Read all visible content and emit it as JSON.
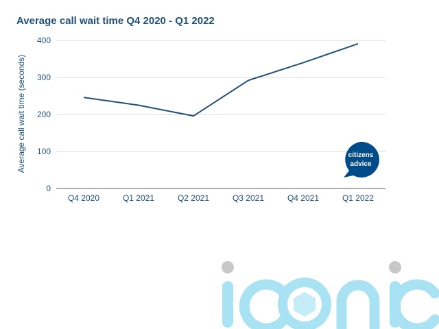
{
  "chart_data": {
    "type": "line",
    "title": "Average call wait time Q4 2020 - Q1 2022",
    "xlabel": "",
    "ylabel": "Average call wait time (seconds)",
    "categories": [
      "Q4 2020",
      "Q1 2021",
      "Q2 2021",
      "Q3 2021",
      "Q4 2021",
      "Q1 2022"
    ],
    "series": [
      {
        "values": [
          246,
          225,
          196,
          292,
          340,
          391
        ]
      }
    ],
    "ylim": [
      0,
      400
    ],
    "yticks": [
      0,
      100,
      200,
      300,
      400
    ],
    "grid": true,
    "legend": "none",
    "colors": {
      "line": "#1f4e79",
      "text": "#1f4e79",
      "grid": "#d9d9d9",
      "axis": "#595959"
    }
  },
  "logo": {
    "line1": "citizens",
    "line2": "advice",
    "color": "#004b88"
  },
  "watermark": {
    "text": "iconic",
    "color": "#a8e2f3",
    "dot_color": "#c8c8c8"
  }
}
